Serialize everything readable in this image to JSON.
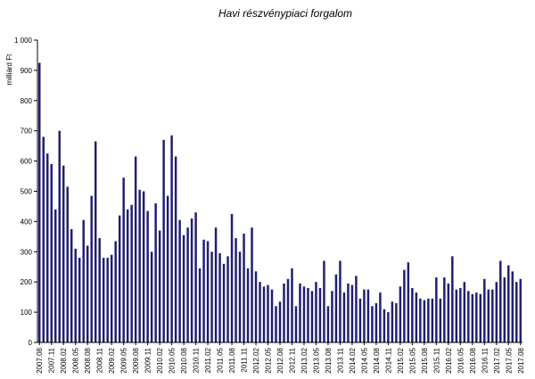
{
  "chart_data": {
    "type": "bar",
    "title": "Havi részvénypiaci  forgalom",
    "ylabel": "milliárd Ft",
    "xlabel": "",
    "ylim": [
      0,
      1000
    ],
    "yticks": [
      0,
      100,
      200,
      300,
      400,
      500,
      600,
      700,
      800,
      900,
      1000
    ],
    "ytick_labels": [
      "0",
      "100",
      "200",
      "300",
      "400",
      "500",
      "600",
      "700",
      "800",
      "900",
      "1 000"
    ],
    "grid": false,
    "bar_color": "#1f1f6e",
    "x_label_every": 3,
    "categories": [
      "2007.08",
      "2007.09",
      "2007.10",
      "2007.11",
      "2007.12",
      "2008.01",
      "2008.02",
      "2008.03",
      "2008.04",
      "2008.05",
      "2008.06",
      "2008.07",
      "2008.08",
      "2008.09",
      "2008.10",
      "2008.11",
      "2008.12",
      "2009.01",
      "2009.02",
      "2009.03",
      "2009.04",
      "2009.05",
      "2009.06",
      "2009.07",
      "2009.08",
      "2009.09",
      "2009.10",
      "2009.11",
      "2009.12",
      "2010.01",
      "2010.02",
      "2010.03",
      "2010.04",
      "2010.05",
      "2010.06",
      "2010.07",
      "2010.08",
      "2010.09",
      "2010.10",
      "2010.11",
      "2010.12",
      "2011.01",
      "2011.02",
      "2011.03",
      "2011.04",
      "2011.05",
      "2011.06",
      "2011.07",
      "2011.08",
      "2011.09",
      "2011.10",
      "2011.11",
      "2011.12",
      "2012.01",
      "2012.02",
      "2012.03",
      "2012.04",
      "2012.05",
      "2012.06",
      "2012.07",
      "2012.08",
      "2012.09",
      "2012.10",
      "2012.11",
      "2012.12",
      "2013.01",
      "2013.02",
      "2013.03",
      "2013.04",
      "2013.05",
      "2013.06",
      "2013.07",
      "2013.08",
      "2013.09",
      "2013.10",
      "2013.11",
      "2013.12",
      "2014.01",
      "2014.02",
      "2014.03",
      "2014.04",
      "2014.05",
      "2014.06",
      "2014.07",
      "2014.08",
      "2014.09",
      "2014.10",
      "2014.11",
      "2014.12",
      "2015.01",
      "2015.02",
      "2015.03",
      "2015.04",
      "2015.05",
      "2015.06",
      "2015.07",
      "2015.08",
      "2015.09",
      "2015.10",
      "2015.11",
      "2015.12",
      "2016.01",
      "2016.02",
      "2016.03",
      "2016.04",
      "2016.05",
      "2016.06",
      "2016.07",
      "2016.08",
      "2016.09",
      "2016.10",
      "2016.11",
      "2016.12",
      "2017.01",
      "2017.02",
      "2017.03",
      "2017.04",
      "2017.05",
      "2017.06",
      "2017.07",
      "2017.08"
    ],
    "values": [
      925,
      680,
      625,
      590,
      440,
      700,
      585,
      515,
      375,
      310,
      280,
      405,
      320,
      485,
      665,
      345,
      280,
      280,
      290,
      335,
      420,
      545,
      440,
      455,
      615,
      505,
      500,
      435,
      300,
      460,
      370,
      670,
      485,
      685,
      615,
      405,
      355,
      380,
      410,
      430,
      245,
      340,
      335,
      300,
      380,
      295,
      260,
      285,
      425,
      345,
      300,
      360,
      245,
      380,
      235,
      200,
      185,
      190,
      175,
      120,
      135,
      195,
      210,
      245,
      120,
      195,
      185,
      180,
      170,
      200,
      180,
      270,
      120,
      170,
      225,
      270,
      165,
      195,
      190,
      220,
      145,
      175,
      175,
      120,
      130,
      165,
      110,
      100,
      135,
      130,
      185,
      240,
      265,
      180,
      165,
      145,
      140,
      145,
      145,
      215,
      145,
      215,
      195,
      285,
      175,
      180,
      200,
      170,
      160,
      165,
      160,
      210,
      175,
      175,
      200,
      270,
      215,
      255,
      235,
      200,
      210
    ]
  }
}
